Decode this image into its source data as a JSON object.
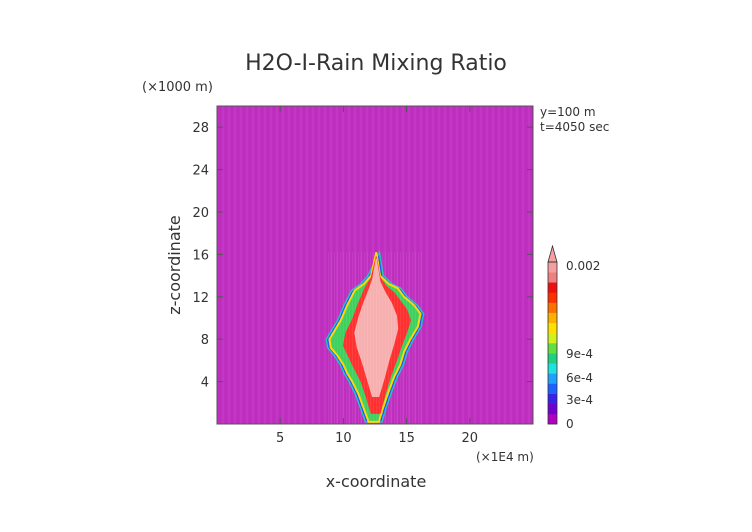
{
  "chart_data": {
    "type": "heatmap",
    "title": "H2O-I-Rain Mixing Ratio",
    "xlabel": "x-coordinate",
    "ylabel": "z-coordinate",
    "x_unit": "(×1E4 m)",
    "y_unit": "(×1000 m)",
    "xlim": [
      0,
      25
    ],
    "ylim": [
      0,
      30
    ],
    "x_ticks": [
      "5",
      "10",
      "15",
      "20"
    ],
    "y_ticks": [
      "4",
      "8",
      "12",
      "16",
      "20",
      "24",
      "28"
    ],
    "annotations": [
      "y=100 m",
      "t=4050 sec"
    ],
    "background_color": "#c030c0",
    "colorbar": {
      "tick_labels": [
        "0",
        "3e-4",
        "6e-4",
        "9e-4",
        "0.002"
      ],
      "colors": [
        "#b000c0",
        "#7000d0",
        "#3a20e8",
        "#2060ff",
        "#20a0ff",
        "#20e0e0",
        "#20d080",
        "#60e040",
        "#d0f020",
        "#ffe000",
        "#ffb000",
        "#ff7000",
        "#ff3000",
        "#ee1010",
        "#f08080",
        "#f4a0a0"
      ],
      "extend_max": true
    },
    "feature": {
      "description_values": {
        "x_range": [
          8.7,
          16.2
        ],
        "z_top": 16,
        "z_bottom": 0,
        "core_value": 0.002
      },
      "contours": [
        {
          "level": "edge",
          "color": "#ffd700",
          "points": [
            [
              12.6,
              16.2
            ],
            [
              12.9,
              14.0
            ],
            [
              13.6,
              13.2
            ],
            [
              14.3,
              12.8
            ],
            [
              14.8,
              12.0
            ],
            [
              15.6,
              11.2
            ],
            [
              16.1,
              10.4
            ],
            [
              15.9,
              9.2
            ],
            [
              15.3,
              8.0
            ],
            [
              14.8,
              6.8
            ],
            [
              14.5,
              5.6
            ],
            [
              14.0,
              4.4
            ],
            [
              13.5,
              2.8
            ],
            [
              13.1,
              1.4
            ],
            [
              12.8,
              0.2
            ],
            [
              12.0,
              0.2
            ],
            [
              11.6,
              1.5
            ],
            [
              11.2,
              2.8
            ],
            [
              10.7,
              4.0
            ],
            [
              10.3,
              4.8
            ],
            [
              10.0,
              5.6
            ],
            [
              9.5,
              6.5
            ],
            [
              9.0,
              7.2
            ],
            [
              8.9,
              8.0
            ],
            [
              9.3,
              8.8
            ],
            [
              9.8,
              9.8
            ],
            [
              10.3,
              11.2
            ],
            [
              10.9,
              12.6
            ],
            [
              11.6,
              13.2
            ],
            [
              12.2,
              14.0
            ]
          ]
        },
        {
          "level": "mid",
          "color": "#ff3030",
          "points": [
            [
              12.6,
              15.8
            ],
            [
              12.9,
              13.8
            ],
            [
              13.4,
              13.0
            ],
            [
              14.0,
              12.4
            ],
            [
              14.5,
              11.6
            ],
            [
              15.0,
              10.8
            ],
            [
              15.3,
              9.8
            ],
            [
              15.0,
              8.6
            ],
            [
              14.6,
              7.4
            ],
            [
              14.2,
              6.0
            ],
            [
              13.7,
              4.4
            ],
            [
              13.3,
              2.8
            ],
            [
              12.9,
              1.0
            ],
            [
              12.2,
              1.0
            ],
            [
              11.8,
              2.6
            ],
            [
              11.4,
              4.0
            ],
            [
              10.8,
              5.4
            ],
            [
              10.4,
              6.4
            ],
            [
              10.0,
              7.4
            ],
            [
              10.2,
              8.6
            ],
            [
              10.7,
              9.8
            ],
            [
              11.2,
              11.4
            ],
            [
              11.7,
              12.8
            ],
            [
              12.2,
              13.8
            ]
          ]
        },
        {
          "level": "core",
          "color": "#f7b0b0",
          "points": [
            [
              12.6,
              15.6
            ],
            [
              12.9,
              13.4
            ],
            [
              13.3,
              12.4
            ],
            [
              13.8,
              11.4
            ],
            [
              14.2,
              10.2
            ],
            [
              14.3,
              9.0
            ],
            [
              14.0,
              7.6
            ],
            [
              13.6,
              6.0
            ],
            [
              13.2,
              4.2
            ],
            [
              12.8,
              2.6
            ],
            [
              12.3,
              2.6
            ],
            [
              11.9,
              4.2
            ],
            [
              11.5,
              5.8
            ],
            [
              11.1,
              7.2
            ],
            [
              10.9,
              8.6
            ],
            [
              11.2,
              10.0
            ],
            [
              11.6,
              11.4
            ],
            [
              12.0,
              12.6
            ],
            [
              12.3,
              13.6
            ]
          ]
        }
      ]
    }
  }
}
